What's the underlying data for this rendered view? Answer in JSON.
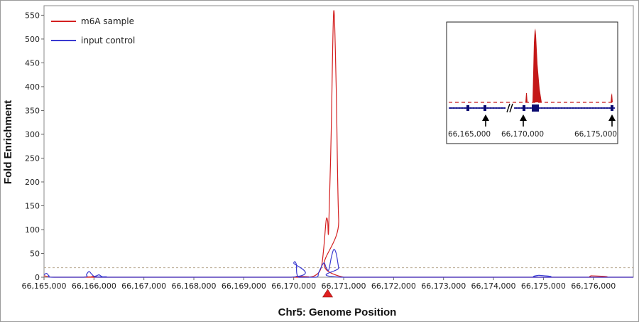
{
  "chart_data": {
    "type": "line",
    "title": "",
    "xlabel": "Chr5: Genome Position",
    "ylabel": "Fold Enrichment",
    "xlim": [
      66165000,
      66176800
    ],
    "ylim": [
      0,
      570
    ],
    "x_ticks": [
      "66,165,000",
      "66,166,000",
      "66,167,000",
      "66,168,000",
      "66,169,000",
      "66,170,000",
      "66,171,000",
      "66,172,000",
      "66,173,000",
      "66,174,000",
      "66,175,000",
      "66,176,000"
    ],
    "x_tick_values": [
      66165000,
      66166000,
      66167000,
      66168000,
      66169000,
      66170000,
      66171000,
      66172000,
      66173000,
      66174000,
      66175000,
      66176000
    ],
    "y_ticks": [
      0,
      50,
      100,
      150,
      200,
      250,
      300,
      350,
      400,
      450,
      500,
      550
    ],
    "threshold": 20,
    "marker_position": 66170680,
    "legend": {
      "placement": "top-left"
    },
    "series": [
      {
        "name": "m6A sample",
        "color": "#d42020",
        "x": [
          66165000,
          66165050,
          66165100,
          66165200,
          66165900,
          66165950,
          66166000,
          66166050,
          66166100,
          66170000,
          66170050,
          66170100,
          66170300,
          66170450,
          66170550,
          66170600,
          66170650,
          66170680,
          66170700,
          66170750,
          66170800,
          66170850,
          66170900,
          66171000,
          66175900,
          66175950,
          66176000,
          66176800
        ],
        "y": [
          3,
          2,
          1,
          0,
          0,
          1,
          2,
          1,
          0,
          0,
          2,
          0,
          0,
          5,
          20,
          60,
          120,
          118,
          100,
          300,
          558,
          400,
          120,
          0,
          0,
          3,
          0,
          0
        ]
      },
      {
        "name": "input control",
        "color": "#3a3ad0",
        "x": [
          66165000,
          66165050,
          66165100,
          66165150,
          66165800,
          66165850,
          66165900,
          66165950,
          66166000,
          66166050,
          66166100,
          66166150,
          66166200,
          66166250,
          66166300,
          66169950,
          66170000,
          66170050,
          66170100,
          66170450,
          66170500,
          66170600,
          66170650,
          66170700,
          66170750,
          66170800,
          66170850,
          66170900,
          66170950,
          66174850,
          66174900,
          66174950,
          66176800
        ],
        "y": [
          5,
          8,
          3,
          0,
          0,
          6,
          12,
          7,
          2,
          3,
          5,
          2,
          0,
          1,
          0,
          0,
          30,
          28,
          0,
          0,
          10,
          30,
          20,
          15,
          40,
          58,
          50,
          20,
          0,
          0,
          4,
          0,
          0
        ]
      }
    ],
    "inset": {
      "tick_labels": [
        "66,165,000",
        "66,170,000",
        "66,175,000"
      ]
    }
  }
}
